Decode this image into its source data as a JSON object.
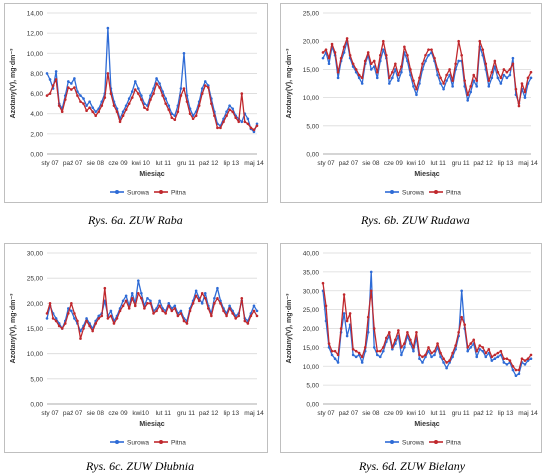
{
  "series_colors": {
    "Surowa": "#2e6bd6",
    "Pitna": "#c0282d"
  },
  "chart_data": [
    {
      "id": "raba",
      "type": "line",
      "caption": "Rys. 6a. ZUW Raba",
      "ylabel": "Azotany(V), mg·dm⁻³",
      "xlabel": "Miesiąc",
      "ylim": [
        0,
        14
      ],
      "ystep": 2,
      "ydecimals": 2,
      "x_ticks": [
        "sty 07",
        "paź 07",
        "sie 08",
        "cze 09",
        "kwi 10",
        "lut 11",
        "gru 11",
        "paź 12",
        "lip 13",
        "maj 14"
      ],
      "legend": [
        "Surowa",
        "Pitna"
      ],
      "series": [
        {
          "name": "Surowa",
          "values": [
            8.0,
            7.4,
            6.5,
            8.2,
            5.0,
            4.5,
            5.8,
            7.2,
            7.0,
            7.5,
            6.2,
            5.8,
            5.5,
            4.8,
            5.2,
            4.6,
            4.2,
            4.5,
            5.2,
            6.0,
            12.5,
            6.5,
            5.2,
            4.5,
            3.5,
            4.2,
            4.8,
            5.5,
            6.2,
            7.2,
            6.5,
            5.8,
            5.0,
            4.8,
            5.8,
            6.5,
            7.5,
            7.0,
            6.2,
            5.5,
            4.8,
            4.0,
            3.8,
            4.8,
            6.5,
            10.0,
            5.8,
            4.5,
            3.8,
            4.2,
            5.2,
            6.5,
            7.2,
            6.8,
            5.5,
            4.2,
            3.0,
            2.8,
            3.5,
            4.2,
            4.8,
            4.5,
            3.8,
            3.5,
            3.2,
            4.0,
            3.5,
            2.5,
            2.2,
            3.0
          ]
        },
        {
          "name": "Pitna",
          "values": [
            5.8,
            6.0,
            6.8,
            7.4,
            4.8,
            4.2,
            5.4,
            6.6,
            6.4,
            6.6,
            5.8,
            5.2,
            5.0,
            4.3,
            4.6,
            4.2,
            3.8,
            4.2,
            4.8,
            5.6,
            8.0,
            6.0,
            4.8,
            4.2,
            3.2,
            3.8,
            4.4,
            5.0,
            5.6,
            6.4,
            6.0,
            5.4,
            4.6,
            4.4,
            5.4,
            6.0,
            7.0,
            6.6,
            5.8,
            5.0,
            4.4,
            3.6,
            3.4,
            4.2,
            5.8,
            6.5,
            5.2,
            4.0,
            3.5,
            3.8,
            4.8,
            6.0,
            6.8,
            6.6,
            5.0,
            3.8,
            2.6,
            2.6,
            3.2,
            3.8,
            4.4,
            4.2,
            3.6,
            3.2,
            6.0,
            3.2,
            3.0,
            2.6,
            2.4,
            2.8
          ]
        }
      ]
    },
    {
      "id": "rudawa",
      "type": "line",
      "caption": "Rys. 6b. ZUW Rudawa",
      "ylabel": "Azotany(V), mg·dm⁻³",
      "xlabel": "Miesiąc",
      "ylim": [
        0,
        25
      ],
      "ystep": 5,
      "ydecimals": 2,
      "x_ticks": [
        "sty 07",
        "paź 07",
        "sie 08",
        "cze 09",
        "kwi 10",
        "lut 11",
        "gru 11",
        "paź 12",
        "lip 13",
        "maj 14"
      ],
      "legend": [
        "Surowa",
        "Pitna"
      ],
      "series": [
        {
          "name": "Surowa",
          "values": [
            17.0,
            18.0,
            16.0,
            19.0,
            17.5,
            13.5,
            16.5,
            18.0,
            20.0,
            17.0,
            15.5,
            14.5,
            13.5,
            12.5,
            16.0,
            17.5,
            15.0,
            15.5,
            13.5,
            16.5,
            18.5,
            17.0,
            12.5,
            13.5,
            15.0,
            13.0,
            14.5,
            18.0,
            16.5,
            14.0,
            12.0,
            10.5,
            12.5,
            15.0,
            16.5,
            17.5,
            18.0,
            16.5,
            14.0,
            12.5,
            11.5,
            13.0,
            14.0,
            12.0,
            15.0,
            16.5,
            16.5,
            12.0,
            9.5,
            11.0,
            13.0,
            12.0,
            19.0,
            17.5,
            15.0,
            12.0,
            13.5,
            15.5,
            13.5,
            12.5,
            14.0,
            13.5,
            14.0,
            17.0,
            10.5,
            9.0,
            11.5,
            10.0,
            12.5,
            13.5
          ]
        },
        {
          "name": "Pitna",
          "values": [
            18.0,
            18.5,
            17.0,
            19.5,
            18.0,
            14.5,
            17.0,
            19.0,
            20.5,
            17.5,
            16.0,
            15.0,
            14.0,
            13.5,
            16.5,
            18.0,
            16.0,
            16.5,
            14.5,
            17.5,
            20.0,
            17.5,
            13.5,
            14.5,
            16.0,
            14.0,
            15.5,
            19.0,
            17.5,
            15.0,
            13.0,
            11.5,
            13.5,
            16.0,
            17.5,
            18.5,
            18.5,
            17.0,
            15.0,
            13.5,
            12.5,
            14.0,
            15.0,
            13.0,
            16.0,
            20.0,
            17.5,
            13.0,
            10.5,
            12.0,
            14.0,
            13.0,
            20.0,
            18.5,
            16.0,
            13.0,
            14.5,
            16.5,
            14.5,
            13.5,
            15.0,
            14.5,
            15.0,
            16.0,
            11.5,
            8.5,
            12.5,
            11.0,
            13.5,
            14.5
          ]
        }
      ]
    },
    {
      "id": "dlubnia",
      "type": "line",
      "caption": "Rys. 6c. ZUW Dłubnia",
      "ylabel": "Azotany(V), mg·dm⁻³",
      "xlabel": "Miesiąc",
      "ylim": [
        0,
        30
      ],
      "ystep": 5,
      "ydecimals": 2,
      "x_ticks": [
        "sty 07",
        "paź 07",
        "sie 08",
        "cze 09",
        "kwi10",
        "lut 11",
        "gru 11",
        "paź 12",
        "lip 13",
        "maj 14"
      ],
      "legend": [
        "Surowa",
        "Pitna"
      ],
      "series": [
        {
          "name": "Surowa",
          "values": [
            17.0,
            19.5,
            18.0,
            17.0,
            16.0,
            15.0,
            16.5,
            19.0,
            18.5,
            17.0,
            16.0,
            14.5,
            15.5,
            17.0,
            16.0,
            15.0,
            16.5,
            17.5,
            18.0,
            20.5,
            17.5,
            18.5,
            16.5,
            17.5,
            19.0,
            20.5,
            21.5,
            19.5,
            22.0,
            20.0,
            24.5,
            22.0,
            19.5,
            21.0,
            20.5,
            18.5,
            19.0,
            20.5,
            19.0,
            18.5,
            20.0,
            19.0,
            19.5,
            18.0,
            18.5,
            17.0,
            16.5,
            19.0,
            20.5,
            22.5,
            21.0,
            20.0,
            22.0,
            19.5,
            18.0,
            21.0,
            23.0,
            20.5,
            19.0,
            18.0,
            19.5,
            18.5,
            17.5,
            18.0,
            20.5,
            17.0,
            16.5,
            18.0,
            19.5,
            18.5
          ]
        },
        {
          "name": "Pitna",
          "values": [
            18.0,
            20.0,
            17.0,
            16.5,
            15.5,
            15.0,
            16.0,
            18.0,
            20.0,
            18.0,
            16.5,
            13.0,
            15.0,
            16.5,
            15.5,
            14.5,
            16.0,
            17.0,
            17.5,
            23.0,
            17.0,
            17.5,
            16.0,
            17.0,
            18.5,
            19.5,
            20.5,
            19.0,
            21.0,
            19.5,
            22.0,
            21.0,
            19.0,
            20.0,
            20.0,
            18.0,
            18.5,
            19.5,
            18.5,
            18.0,
            19.5,
            18.5,
            19.0,
            17.5,
            18.0,
            16.5,
            16.0,
            18.5,
            20.0,
            21.5,
            20.5,
            22.0,
            21.0,
            19.0,
            17.5,
            20.0,
            21.0,
            20.0,
            18.5,
            17.5,
            19.0,
            18.0,
            17.0,
            17.5,
            21.0,
            16.5,
            16.0,
            17.5,
            18.5,
            17.5
          ]
        }
      ]
    },
    {
      "id": "bielany",
      "type": "line",
      "caption": "Rys. 6d. ZUW Bielany",
      "ylabel": "Azotany(V), mg·dm⁻³",
      "xlabel": "Miesiąc",
      "ylim": [
        0,
        40
      ],
      "ystep": 5,
      "ydecimals": 2,
      "x_ticks": [
        "sty 07",
        "paź 07",
        "sie 08",
        "cze 09",
        "kwi 10",
        "lut 11",
        "gru 11",
        "paź 12",
        "lip 13",
        "maj 14"
      ],
      "legend": [
        "Surowa",
        "Pitna"
      ],
      "series": [
        {
          "name": "Surowa",
          "values": [
            30.0,
            22.0,
            15.0,
            13.0,
            12.0,
            11.0,
            19.0,
            24.0,
            18.0,
            21.0,
            13.0,
            12.5,
            13.0,
            11.0,
            14.0,
            19.0,
            35.0,
            15.0,
            13.0,
            12.5,
            14.0,
            16.5,
            18.0,
            14.5,
            16.0,
            18.0,
            13.0,
            15.0,
            18.0,
            16.0,
            14.0,
            17.5,
            12.0,
            11.0,
            12.5,
            14.0,
            12.5,
            13.0,
            15.0,
            12.5,
            11.0,
            9.5,
            11.0,
            12.5,
            14.5,
            18.0,
            30.0,
            20.0,
            14.0,
            15.0,
            16.0,
            12.5,
            14.5,
            14.0,
            12.5,
            13.5,
            11.5,
            12.0,
            12.5,
            13.0,
            11.0,
            10.5,
            11.0,
            9.0,
            7.5,
            8.0,
            11.0,
            10.5,
            11.5,
            12.0
          ]
        },
        {
          "name": "Pitna",
          "values": [
            32.0,
            26.0,
            16.0,
            14.0,
            14.0,
            13.0,
            20.0,
            29.0,
            22.0,
            24.0,
            14.5,
            14.0,
            13.5,
            12.5,
            15.0,
            23.0,
            30.0,
            20.0,
            14.0,
            14.0,
            15.0,
            17.5,
            19.0,
            15.0,
            17.0,
            19.5,
            15.0,
            16.0,
            19.0,
            17.0,
            15.0,
            19.0,
            13.0,
            12.5,
            13.0,
            15.0,
            13.5,
            14.0,
            16.0,
            13.5,
            12.0,
            11.0,
            11.5,
            13.5,
            15.5,
            19.0,
            23.0,
            21.0,
            15.0,
            16.0,
            17.0,
            14.0,
            15.5,
            15.0,
            13.5,
            14.5,
            12.5,
            13.0,
            13.5,
            14.0,
            12.0,
            12.0,
            11.5,
            10.0,
            9.0,
            9.0,
            12.0,
            11.5,
            12.0,
            13.0
          ]
        }
      ]
    }
  ]
}
